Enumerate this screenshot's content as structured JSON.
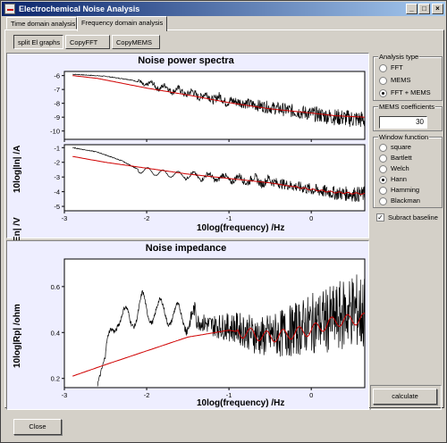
{
  "window": {
    "title": "Electrochemical Noise Analysis",
    "minimize": "_",
    "maximize": "□",
    "close": "×"
  },
  "tabs": [
    {
      "label": "Time domain analysis"
    },
    {
      "label": "Frequency domain analysis"
    }
  ],
  "subtabs": [
    {
      "label": "split El graphs"
    },
    {
      "label": "CopyFFT"
    },
    {
      "label": "CopyMEMS"
    }
  ],
  "spectra": {
    "title": "Noise power spectra",
    "current_ylabel": "10log|In| /A",
    "voltage_ylabel": "10log|En| /V",
    "xlabel": "10log(frequency) /Hz"
  },
  "impedance": {
    "title": "Noise impedance",
    "ylabel": "10log|Rp| /ohm",
    "xlabel": "10log(frequency) /Hz"
  },
  "analysis_type": {
    "title": "Analysis type",
    "options": [
      "FFT",
      "MEMS",
      "FFT + MEMS"
    ],
    "selected": "FFT + MEMS"
  },
  "mems_coefficients": {
    "title": "MEMS coefficients",
    "value": "30"
  },
  "window_function": {
    "title": "Window function",
    "options": [
      "square",
      "Bartlett",
      "Welch",
      "Hann",
      "Hamming",
      "Blackman"
    ],
    "selected": "Hann"
  },
  "subtract_baseline": {
    "label": "Subract baseline",
    "checked": true
  },
  "buttons": {
    "calculate": "calculate",
    "close": "Close"
  },
  "colors": {
    "fft_series": "#000000",
    "mems_series": "#d00000",
    "plot_bg": "#eeeeff"
  },
  "chart_data": [
    {
      "type": "line",
      "title": "Noise power spectra",
      "xlabel": "",
      "ylabel": "10log|In| /A",
      "xlim": [
        -3,
        0.65
      ],
      "ylim": [
        -10.6,
        -5.7
      ],
      "xticks": [
        "-3",
        "-2",
        "-1",
        "0"
      ],
      "yticks": [
        "-6",
        "-7",
        "-8",
        "-9",
        "-10"
      ],
      "series": [
        {
          "x": [
            -2.9,
            -2.5,
            -2.2,
            -2.0,
            -1.5,
            -1.0,
            -0.5,
            0.0,
            0.3,
            0.65
          ],
          "y": [
            -5.9,
            -6.05,
            -6.3,
            -6.6,
            -7.25,
            -7.8,
            -8.3,
            -8.75,
            -9.0,
            -9.2
          ]
        },
        {
          "x": [
            -2.9,
            -2.6,
            -2.3,
            -2.0,
            -1.5,
            -1.0,
            -0.5,
            0.0,
            0.3,
            0.65
          ],
          "y": [
            -6.0,
            -6.2,
            -6.55,
            -6.9,
            -7.4,
            -7.95,
            -8.4,
            -8.7,
            -8.9,
            -9.0
          ]
        }
      ]
    },
    {
      "type": "line",
      "title": "",
      "xlabel": "10log(frequency) /Hz",
      "ylabel": "10log|En| /V",
      "xlim": [
        -3,
        0.65
      ],
      "ylim": [
        -5.3,
        -0.8
      ],
      "xticks": [
        "-3",
        "-2",
        "-1",
        "0"
      ],
      "yticks": [
        "-1",
        "-2",
        "-3",
        "-4",
        "-5"
      ],
      "series": [
        {
          "x": [
            -2.9,
            -2.6,
            -2.3,
            -2.1,
            -1.8,
            -1.5,
            -1.0,
            -0.5,
            0.0,
            0.3,
            0.65
          ],
          "y": [
            -1.0,
            -1.3,
            -1.9,
            -2.5,
            -2.75,
            -2.9,
            -3.1,
            -3.3,
            -3.85,
            -4.1,
            -4.2
          ]
        },
        {
          "x": [
            -2.9,
            -2.5,
            -2.0,
            -1.5,
            -1.0,
            -0.5,
            0.0,
            0.3,
            0.65
          ],
          "y": [
            -1.6,
            -2.0,
            -2.4,
            -2.8,
            -3.1,
            -3.4,
            -3.85,
            -4.05,
            -4.15
          ]
        }
      ]
    },
    {
      "type": "line",
      "title": "Noise impedance",
      "xlabel": "10log(frequency) /Hz",
      "ylabel": "10log|Rp| /ohm",
      "xlim": [
        -3,
        0.65
      ],
      "ylim": [
        0.16,
        0.72
      ],
      "xticks": [
        "-3",
        "-2",
        "-1",
        "0"
      ],
      "yticks": [
        "0.2",
        "0.4",
        "0.6"
      ],
      "series": [
        {
          "x": [
            -2.6,
            -2.5,
            -2.35,
            -2.2,
            -2.05,
            -2.0,
            -1.9,
            -1.6,
            -1.2,
            -0.9,
            -0.6,
            -0.3,
            0.0,
            0.3,
            0.5,
            0.65
          ],
          "y": [
            0.17,
            0.3,
            0.48,
            0.45,
            0.53,
            0.48,
            0.5,
            0.47,
            0.43,
            0.42,
            0.38,
            0.4,
            0.44,
            0.46,
            0.5,
            0.48
          ]
        },
        {
          "x": [
            -2.9,
            -2.5,
            -2.0,
            -1.5,
            -1.0,
            -0.5,
            0.0,
            0.3,
            0.65
          ],
          "y": [
            0.21,
            0.26,
            0.32,
            0.38,
            0.41,
            0.38,
            0.41,
            0.45,
            0.46
          ]
        }
      ]
    }
  ]
}
